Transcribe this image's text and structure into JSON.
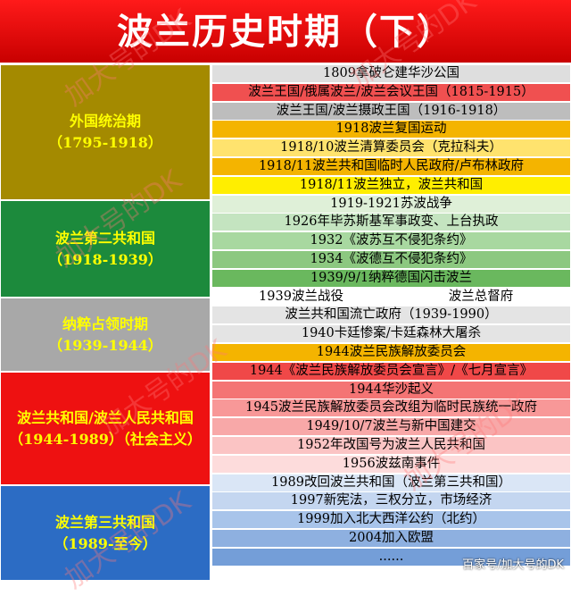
{
  "title": "波兰历史时期（下）",
  "periods": [
    {
      "name": "外国统治期",
      "years": "（1795-1918）",
      "color": "#a48a00",
      "text_color": "#ffff00"
    },
    {
      "name": "波兰第二共和国",
      "years": "（1918-1939）",
      "color": "#1c8a3c",
      "text_color": "#ffff00"
    },
    {
      "name": "纳粹占领时期",
      "years": "（1939-1944）",
      "color": "#a8a8a8",
      "text_color": "#ffff00"
    },
    {
      "name": "波兰共和国/波兰人民共和国",
      "years": "（1944-1989）（社会主义）",
      "color": "#ee1111",
      "text_color": "#ffff00"
    },
    {
      "name": "波兰第三共和国",
      "years": "（1989-至今）",
      "color": "#2c6cc4",
      "text_color": "#ffff00"
    }
  ],
  "events": [
    {
      "text": "1809拿破仑建华沙公国",
      "color": "#dedede"
    },
    {
      "text": "波兰王国/俄属波兰/波兰会议王国（1815-1915）",
      "color": "#f05050"
    },
    {
      "text": "波兰王国/波兰摄政王国（1916-1918）",
      "color": "#bdbdbd"
    },
    {
      "text": "1918波兰复国运动",
      "color": "#f4b400"
    },
    {
      "text": "1918/10波兰清算委员会（克拉科夫）",
      "color": "#ffe36e"
    },
    {
      "text": "1918/11波兰共和国临时人民政府/卢布林政府",
      "color": "#f4b400"
    },
    {
      "text": "1918/11波兰独立，波兰共和国",
      "color": "#ffee00"
    },
    {
      "text": "1919-1921苏波战争",
      "color": "#dff0d8"
    },
    {
      "text": "1926年毕苏斯基军事政变、上台执政",
      "color": "#c4e4c0"
    },
    {
      "text": "1932《波苏互不侵犯条约》",
      "color": "#a8d8a0"
    },
    {
      "text": "1934《波德互不侵犯条约》",
      "color": "#8cc880"
    },
    {
      "text": "1939/9/1纳粹德国闪击波兰",
      "color": "#6ab85e"
    },
    {
      "text": "波兰共和国流亡政府（1939-1990）",
      "color": "#e4e4e4"
    },
    {
      "text": "1940卡廷惨案/卡廷森林大屠杀",
      "color": "#e4e4e4"
    },
    {
      "text": "1944波兰民族解放委员会",
      "color": "#f4b400"
    },
    {
      "text": "1944《波兰民族解放委员会宣言》/《七月宣言》",
      "color": "#f04848"
    },
    {
      "text": "1944华沙起义",
      "color": "#f47474"
    },
    {
      "text": "1945波兰民族解放委员会改组为临时民族统一政府",
      "color": "#f89898"
    },
    {
      "text": "1949/10/7波兰与新中国建交",
      "color": "#f8a8a8"
    },
    {
      "text": "1952年改国号为波兰人民共和国",
      "color": "#fbc4c4"
    },
    {
      "text": "1956波兹南事件",
      "color": "#fddcdc"
    },
    {
      "text": "1989改回波兰共和国（波兰第三共和国）",
      "color": "#dae6f6"
    },
    {
      "text": "1997新宪法，三权分立，市场经济",
      "color": "#c4d6f0"
    },
    {
      "text": "1999加入北大西洋公约（北约）",
      "color": "#a8c4ea"
    },
    {
      "text": "2004加入欧盟",
      "color": "#8eb0e0"
    },
    {
      "text": "......",
      "color": "#749ed8"
    }
  ],
  "split_row": {
    "left": "1939波兰战役",
    "right": "波兰总督府",
    "color": "#ffffff"
  },
  "watermark": "百家号/加大号的DK",
  "watermark_diagonal": "加大号的DK"
}
